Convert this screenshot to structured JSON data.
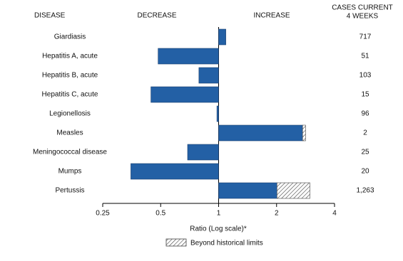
{
  "chart_data": {
    "type": "hbar",
    "headers": {
      "disease": "DISEASE",
      "decrease": "DECREASE",
      "increase": "INCREASE",
      "cases": [
        "CASES CURRENT",
        "4 WEEKS"
      ]
    },
    "categories": [
      "Giardiasis",
      "Hepatitis A, acute",
      "Hepatitis B, acute",
      "Hepatitis C, acute",
      "Legionellosis",
      "Measles",
      "Meningococcal disease",
      "Mumps",
      "Pertussis"
    ],
    "values": [
      1.09,
      0.485,
      0.79,
      0.445,
      0.98,
      2.83,
      0.69,
      0.35,
      2.98
    ],
    "historical_limit": [
      null,
      null,
      null,
      null,
      null,
      2.73,
      null,
      null,
      2.01
    ],
    "cases": [
      "717",
      "51",
      "103",
      "15",
      "96",
      "2",
      "25",
      "20",
      "1,263"
    ],
    "color": "#2360a5",
    "hatch_color": "#444444",
    "log_scale": true,
    "xlim": [
      0.25,
      4
    ],
    "xticks": [
      0.25,
      0.5,
      1,
      2,
      4
    ],
    "xlabel": "Ratio (Log scale)*",
    "legend": "Beyond historical limits"
  }
}
